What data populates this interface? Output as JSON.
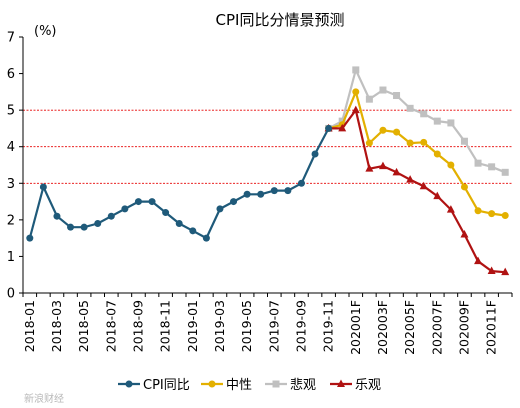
{
  "chart_data": {
    "type": "line",
    "title": "CPI同比分情景预测",
    "ylabel": "(%)",
    "xlabel": "",
    "ylim": [
      0,
      7
    ],
    "yticks": [
      0,
      1,
      2,
      3,
      4,
      5,
      6,
      7
    ],
    "reference_lines": [
      3,
      4,
      5
    ],
    "categories": [
      "2018-01",
      "2018-02",
      "2018-03",
      "2018-04",
      "2018-05",
      "2018-06",
      "2018-07",
      "2018-08",
      "2018-09",
      "2018-10",
      "2018-11",
      "2018-12",
      "2019-01",
      "2019-02",
      "2019-03",
      "2019-04",
      "2019-05",
      "2019-06",
      "2019-07",
      "2019-08",
      "2019-09",
      "2019-10",
      "2019-11",
      "2019-12",
      "202001F",
      "202002F",
      "202003F",
      "202004F",
      "202005F",
      "202006F",
      "202007F",
      "202008F",
      "202009F",
      "202010F",
      "202011F",
      "202012F"
    ],
    "tick_labels": [
      "2018-01",
      "2018-03",
      "2018-05",
      "2018-07",
      "2018-09",
      "2018-11",
      "2019-01",
      "2019-03",
      "2019-05",
      "2019-07",
      "2019-09",
      "2019-11",
      "202001F",
      "202003F",
      "202005F",
      "202007F",
      "202009F",
      "202011F"
    ],
    "legend_position": "bottom",
    "series": [
      {
        "name": "CPI同比",
        "color": "#1f5a7a",
        "marker": "circle",
        "values": [
          1.5,
          2.9,
          2.1,
          1.8,
          1.8,
          1.9,
          2.1,
          2.3,
          2.5,
          2.5,
          2.2,
          1.9,
          1.7,
          1.5,
          2.3,
          2.5,
          2.7,
          2.7,
          2.8,
          2.8,
          3.0,
          3.8,
          4.5,
          null,
          null,
          null,
          null,
          null,
          null,
          null,
          null,
          null,
          null,
          null,
          null,
          null
        ]
      },
      {
        "name": "中性",
        "color": "#e3b000",
        "marker": "circle",
        "values": [
          null,
          null,
          null,
          null,
          null,
          null,
          null,
          null,
          null,
          null,
          null,
          null,
          null,
          null,
          null,
          null,
          null,
          null,
          null,
          null,
          null,
          null,
          4.5,
          4.6,
          5.5,
          4.1,
          4.45,
          4.4,
          4.1,
          4.12,
          3.8,
          3.5,
          2.9,
          2.25,
          2.17,
          2.12
        ]
      },
      {
        "name": "悲观",
        "color": "#c0c0c0",
        "marker": "square",
        "values": [
          null,
          null,
          null,
          null,
          null,
          null,
          null,
          null,
          null,
          null,
          null,
          null,
          null,
          null,
          null,
          null,
          null,
          null,
          null,
          null,
          null,
          null,
          4.5,
          4.7,
          6.1,
          5.3,
          5.55,
          5.4,
          5.05,
          4.9,
          4.7,
          4.65,
          4.15,
          3.55,
          3.45,
          3.3
        ]
      },
      {
        "name": "乐观",
        "color": "#b01212",
        "marker": "triangle",
        "values": [
          null,
          null,
          null,
          null,
          null,
          null,
          null,
          null,
          null,
          null,
          null,
          null,
          null,
          null,
          null,
          null,
          null,
          null,
          null,
          null,
          null,
          null,
          4.5,
          4.5,
          5.0,
          3.4,
          3.47,
          3.3,
          3.1,
          2.92,
          2.65,
          2.28,
          1.6,
          0.87,
          0.6,
          0.57
        ]
      }
    ]
  },
  "watermark": "新浪财经"
}
